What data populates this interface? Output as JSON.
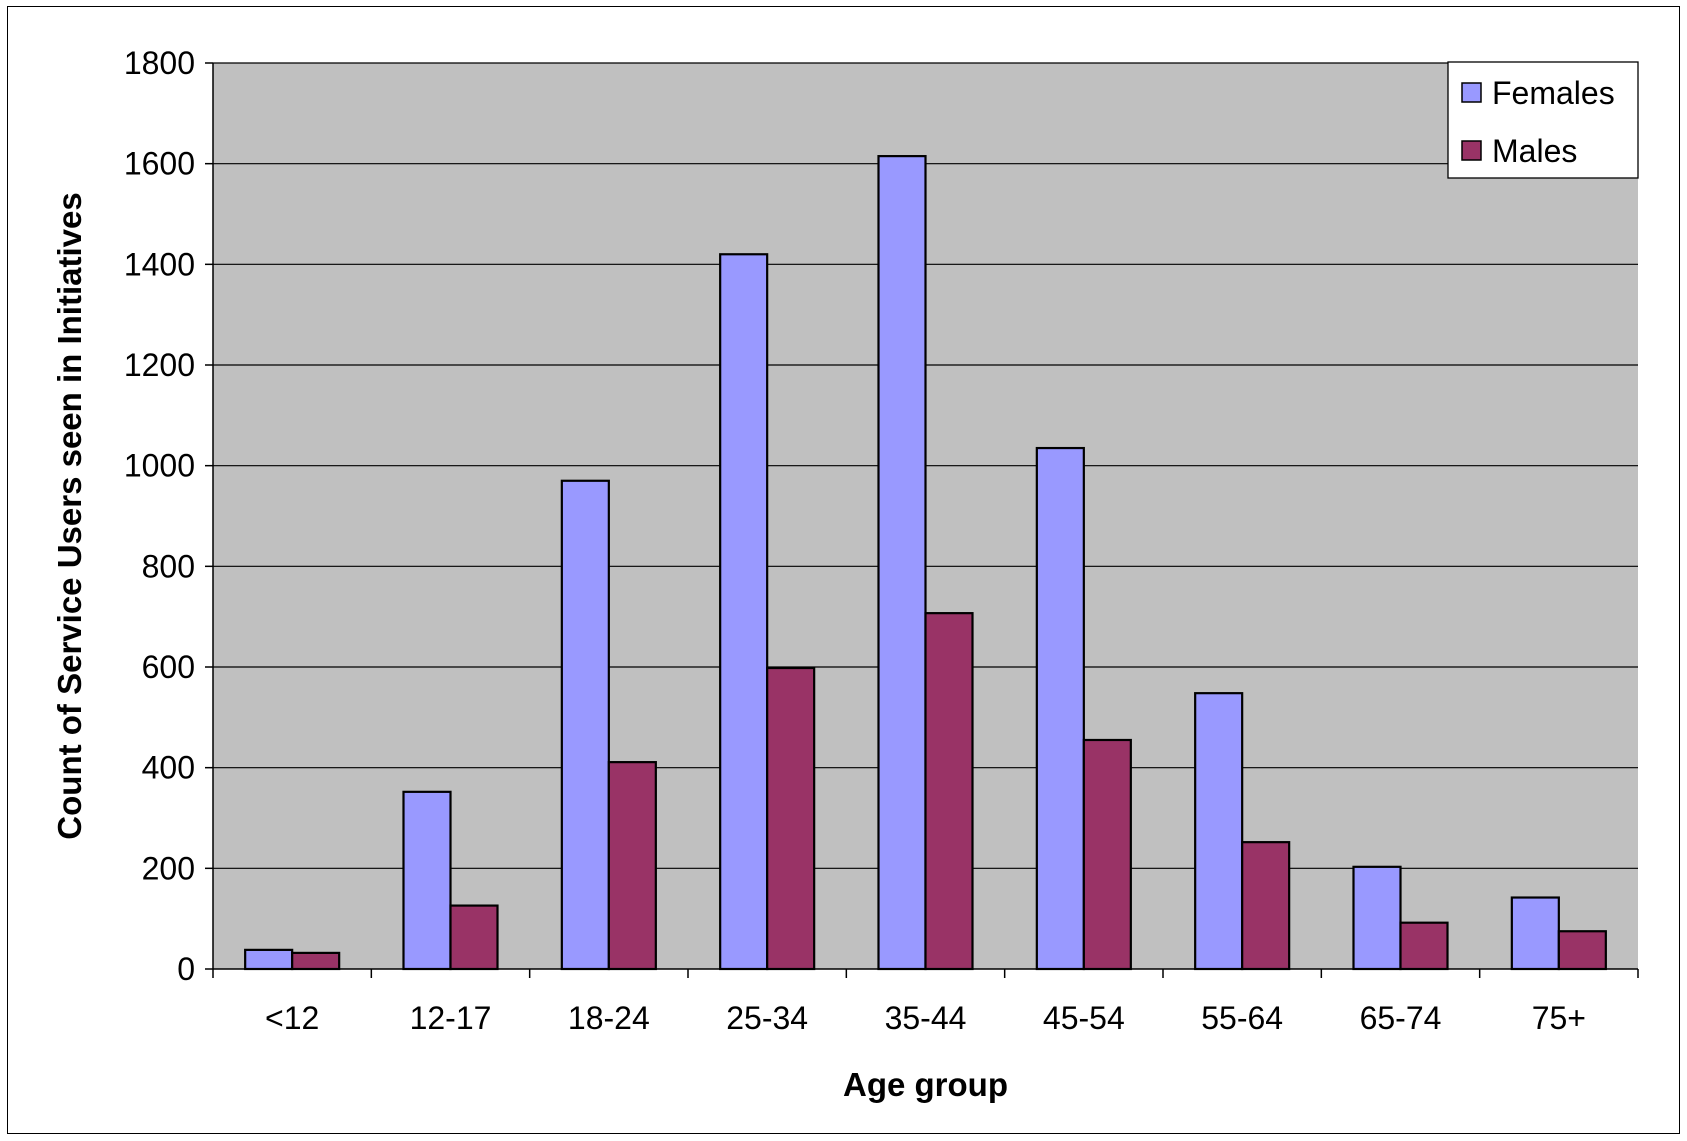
{
  "chart_data": {
    "type": "bar",
    "title": "",
    "xlabel": "Age group",
    "ylabel": "Count of Service Users seen in Initiatives",
    "ylim": [
      0,
      1800
    ],
    "yticks": [
      0,
      200,
      400,
      600,
      800,
      1000,
      1200,
      1400,
      1600,
      1800
    ],
    "grid": true,
    "legend_position": "top-right",
    "categories": [
      "<12",
      "12-17",
      "18-24",
      "25-34",
      "35-44",
      "45-54",
      "55-64",
      "65-74",
      "75+"
    ],
    "series": [
      {
        "name": "Females",
        "color": "#9999FF",
        "values": [
          38,
          352,
          970,
          1420,
          1615,
          1035,
          548,
          203,
          142
        ]
      },
      {
        "name": "Males",
        "color": "#993366",
        "values": [
          32,
          126,
          411,
          598,
          707,
          455,
          252,
          92,
          75
        ]
      }
    ],
    "plot_background": "#C0C0C0"
  }
}
